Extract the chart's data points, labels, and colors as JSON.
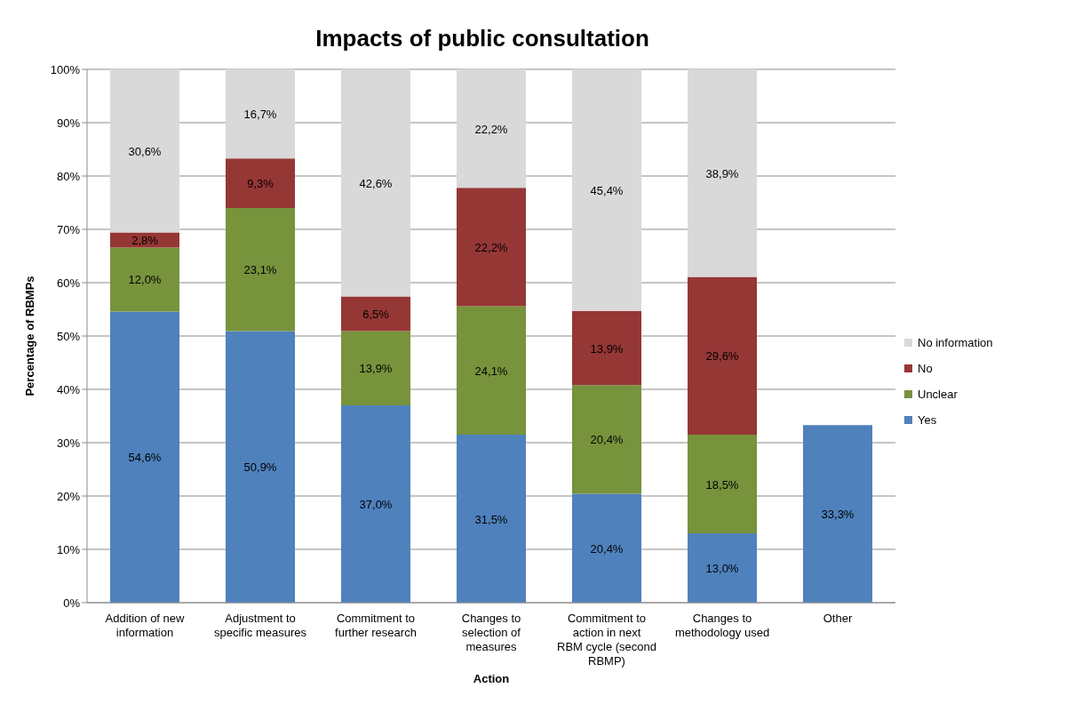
{
  "chart_data": {
    "type": "bar",
    "title": "Impacts of public consultation",
    "xlabel": "Action",
    "ylabel": "Percentage of RBMPs",
    "categories": [
      "Addition of new information",
      "Adjustment to specific measures",
      "Commitment to further research",
      "Changes to selection of measures",
      "Commitment to action in next RBM cycle (second RBMP)",
      "Changes to methodology used",
      "Other"
    ],
    "stacked": true,
    "series": [
      {
        "name": "Yes",
        "color": "#4f81bd",
        "values": [
          54.6,
          50.9,
          37.0,
          31.5,
          20.4,
          13.0,
          33.3
        ],
        "value_labels": [
          "54,6%",
          "50,9%",
          "37,0%",
          "31,5%",
          "20,4%",
          "13,0%",
          "33,3%"
        ]
      },
      {
        "name": "Unclear",
        "color": "#77933c",
        "values": [
          12.0,
          23.1,
          13.9,
          24.1,
          20.4,
          18.5,
          null
        ],
        "value_labels": [
          "12,0%",
          "23,1%",
          "13,9%",
          "24,1%",
          "20,4%",
          "18,5%",
          null
        ]
      },
      {
        "name": "No",
        "color": "#953735",
        "values": [
          2.8,
          9.3,
          6.5,
          22.2,
          13.9,
          29.6,
          null
        ],
        "value_labels": [
          "2,8%",
          "9,3%",
          "6,5%",
          "22,2%",
          "13,9%",
          "29,6%",
          null
        ]
      },
      {
        "name": "No information",
        "color": "#d9d9d9",
        "values": [
          30.6,
          16.7,
          42.6,
          22.2,
          45.4,
          38.9,
          null
        ],
        "value_labels": [
          "30,6%",
          "16,7%",
          "42,6%",
          "22,2%",
          "45,4%",
          "38,9%",
          null
        ]
      }
    ],
    "ylim": [
      0,
      100
    ],
    "yticks": [
      {
        "value": 0,
        "label": "0%"
      },
      {
        "value": 10,
        "label": "10%"
      },
      {
        "value": 20,
        "label": "20%"
      },
      {
        "value": 30,
        "label": "30%"
      },
      {
        "value": 40,
        "label": "40%"
      },
      {
        "value": 50,
        "label": "50%"
      },
      {
        "value": 60,
        "label": "60%"
      },
      {
        "value": 70,
        "label": "70%"
      },
      {
        "value": 80,
        "label": "80%"
      },
      {
        "value": 90,
        "label": "90%"
      },
      {
        "value": 100,
        "label": "100%"
      }
    ],
    "grid": "y",
    "legend": "right"
  }
}
